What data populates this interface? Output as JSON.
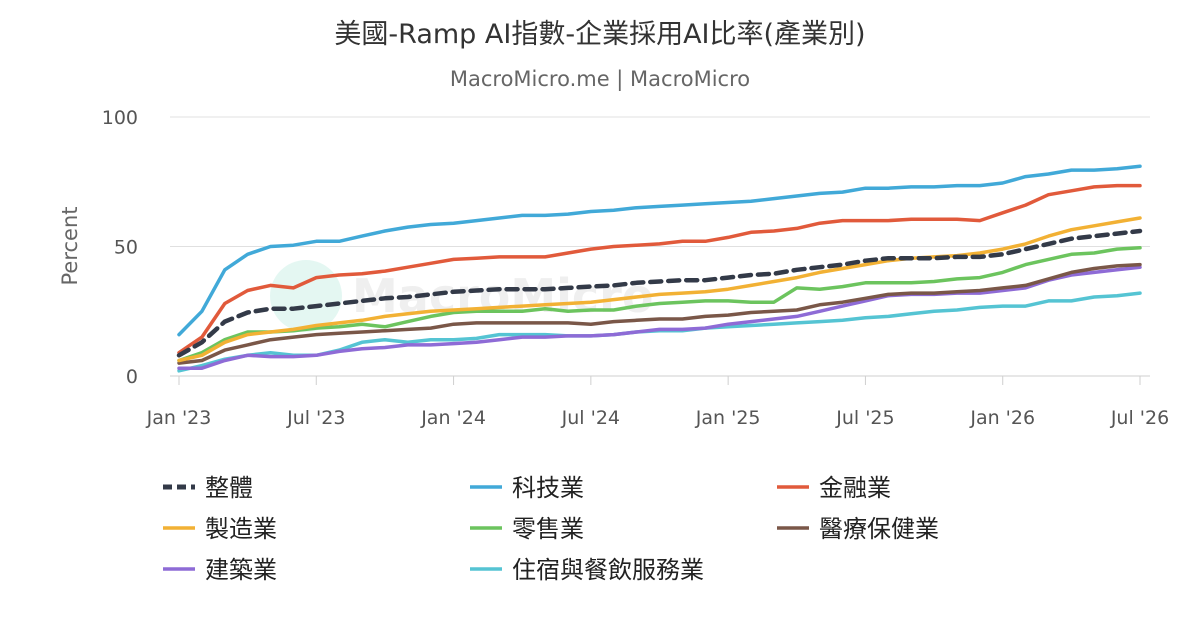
{
  "chart_data": {
    "type": "line",
    "title": "美國-Ramp AI指數-企業採用AI比率(產業別)",
    "subtitle": "MacroMicro.me | MacroMicro",
    "watermark": "MacroMicro",
    "ylabel": "Percent",
    "ylim": [
      0,
      100
    ],
    "yticks": [
      0,
      50,
      100
    ],
    "grid": true,
    "legend_position": "bottom",
    "x_range": [
      "2023-01",
      "2026-07"
    ],
    "xticks": [
      {
        "label": "Jan '23",
        "month": "2023-01"
      },
      {
        "label": "Jul '23",
        "month": "2023-07"
      },
      {
        "label": "Jan '24",
        "month": "2024-01"
      },
      {
        "label": "Jul '24",
        "month": "2024-07"
      },
      {
        "label": "Jan '25",
        "month": "2025-01"
      },
      {
        "label": "Jul '25",
        "month": "2025-07"
      },
      {
        "label": "Jan '26",
        "month": "2026-01"
      },
      {
        "label": "Jul '26",
        "month": "2026-07"
      }
    ],
    "x": [
      "2023-01",
      "2023-02",
      "2023-03",
      "2023-04",
      "2023-05",
      "2023-06",
      "2023-07",
      "2023-08",
      "2023-09",
      "2023-10",
      "2023-11",
      "2023-12",
      "2024-01",
      "2024-02",
      "2024-03",
      "2024-04",
      "2024-05",
      "2024-06",
      "2024-07",
      "2024-08",
      "2024-09",
      "2024-10",
      "2024-11",
      "2024-12",
      "2025-01",
      "2025-02",
      "2025-03",
      "2025-04",
      "2025-05",
      "2025-06",
      "2025-07",
      "2025-08",
      "2025-09",
      "2025-10",
      "2025-11",
      "2025-12",
      "2026-01",
      "2026-02",
      "2026-03",
      "2026-04",
      "2026-05",
      "2026-06",
      "2026-07"
    ],
    "series": [
      {
        "name": "整體",
        "color": "#333a48",
        "dash": true,
        "values": [
          8,
          13,
          21,
          24.5,
          26,
          26,
          27,
          28,
          29,
          30,
          30.5,
          31.5,
          32.5,
          33,
          33.5,
          33.5,
          33.5,
          34,
          34.5,
          35,
          36,
          36.5,
          37,
          37,
          38,
          39,
          39.5,
          41,
          42,
          43,
          44.5,
          45.5,
          45.5,
          45.5,
          46,
          46,
          47,
          49,
          51,
          53,
          54,
          55,
          56
        ]
      },
      {
        "name": "科技業",
        "color": "#41a9d8",
        "dash": false,
        "values": [
          16,
          25,
          41,
          47,
          50,
          50.5,
          52,
          52,
          54,
          56,
          57.5,
          58.5,
          59,
          60,
          61,
          62,
          62,
          62.5,
          63.5,
          64,
          65,
          65.5,
          66,
          66.5,
          67,
          67.5,
          68.5,
          69.5,
          70.5,
          71,
          72.5,
          72.5,
          73,
          73,
          73.5,
          73.5,
          74.5,
          77,
          78,
          79.5,
          79.5,
          80,
          81
        ]
      },
      {
        "name": "金融業",
        "color": "#e15a3b",
        "dash": false,
        "values": [
          9,
          15,
          28,
          33,
          35,
          34,
          38,
          39,
          39.5,
          40.5,
          42,
          43.5,
          45,
          45.5,
          46,
          46,
          46,
          47.5,
          49,
          50,
          50.5,
          51,
          52,
          52,
          53.5,
          55.5,
          56,
          57,
          59,
          60,
          60,
          60,
          60.5,
          60.5,
          60.5,
          60,
          63,
          66,
          70,
          71.5,
          73,
          73.5,
          73.5
        ]
      },
      {
        "name": "製造業",
        "color": "#f2b134",
        "dash": false,
        "values": [
          6,
          8,
          13,
          16,
          17,
          18,
          19.5,
          20.5,
          21.5,
          23,
          24,
          25,
          25.5,
          26,
          26.5,
          27,
          27.5,
          28,
          28.5,
          29.5,
          30.5,
          31.5,
          32,
          32.5,
          33.5,
          35,
          36.5,
          38,
          40,
          41.5,
          43,
          44.5,
          45.5,
          46,
          46.5,
          47.5,
          49,
          51,
          54,
          56.5,
          58,
          59.5,
          61
        ]
      },
      {
        "name": "零售業",
        "color": "#6cc45e",
        "dash": false,
        "values": [
          6,
          9,
          14,
          17,
          17,
          17.5,
          18.5,
          19,
          20,
          19,
          21,
          23,
          24.5,
          25,
          25,
          25,
          26,
          25,
          25.5,
          25.5,
          27,
          28,
          28.5,
          29,
          29,
          28.5,
          28.5,
          34,
          33.5,
          34.5,
          36,
          36,
          36,
          36.5,
          37.5,
          38,
          40,
          43,
          45,
          47,
          47.5,
          49,
          49.5
        ]
      },
      {
        "name": "醫療保健業",
        "color": "#7a5748",
        "dash": false,
        "values": [
          5,
          6,
          10,
          12,
          14,
          15,
          16,
          16.5,
          17,
          17.5,
          18,
          18.5,
          20,
          20.5,
          20.5,
          20.5,
          20.5,
          20.5,
          20,
          21,
          21.5,
          22,
          22,
          23,
          23.5,
          24.5,
          25,
          25.5,
          27.5,
          28.5,
          30,
          31.5,
          32,
          32,
          32.5,
          33,
          34,
          35,
          37.5,
          40,
          41.5,
          42.5,
          43
        ]
      },
      {
        "name": "建築業",
        "color": "#8e6bd6",
        "dash": false,
        "values": [
          3,
          3,
          6,
          8,
          7.5,
          7.5,
          8,
          9.5,
          10.5,
          11,
          12,
          12,
          12.5,
          13,
          14,
          15,
          15,
          15.5,
          15.5,
          16,
          17,
          18,
          18,
          18.5,
          20,
          21,
          22,
          23,
          25,
          27,
          29,
          31,
          31.5,
          31.5,
          32,
          32,
          33,
          34,
          37,
          39,
          40,
          41,
          42
        ]
      },
      {
        "name": "住宿與餐飲服務業",
        "color": "#55c4d3",
        "dash": false,
        "values": [
          2,
          4,
          6.5,
          8,
          9,
          8,
          8,
          10,
          13,
          14,
          13,
          14,
          14,
          14.5,
          16,
          16,
          16,
          15.5,
          15.5,
          16,
          17,
          17.5,
          17.5,
          18.5,
          19,
          19.5,
          20,
          20.5,
          21,
          21.5,
          22.5,
          23,
          24,
          25,
          25.5,
          26.5,
          27,
          27,
          29,
          29,
          30.5,
          31,
          32
        ]
      }
    ]
  }
}
